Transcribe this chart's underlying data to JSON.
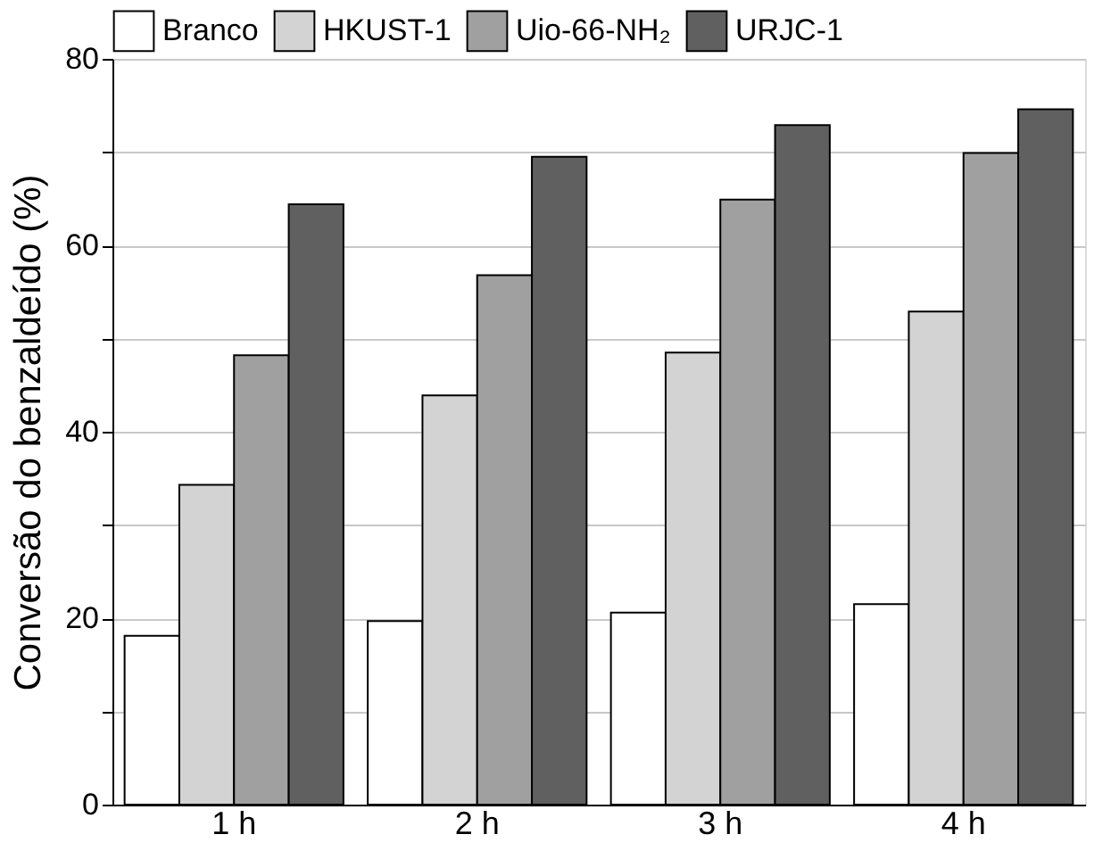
{
  "chart_data": {
    "type": "bar",
    "ylabel": "Conversão do benzaldeído (%)",
    "categories": [
      "1 h",
      "2 h",
      "3 h",
      "4 h"
    ],
    "series": [
      {
        "name": "Branco",
        "color": "#ffffff",
        "values": [
          18.1,
          19.7,
          20.6,
          21.5
        ]
      },
      {
        "name": "HKUST-1",
        "color": "#d3d3d3",
        "values": [
          34.3,
          43.9,
          48.5,
          52.9
        ]
      },
      {
        "name": "Uio-66-NH₂",
        "color": "#a0a0a0",
        "values": [
          48.2,
          56.8,
          64.9,
          69.9
        ]
      },
      {
        "name": "URJC-1",
        "color": "#606060",
        "values": [
          64.4,
          69.5,
          72.9,
          74.6
        ]
      }
    ],
    "ylim": [
      0,
      80
    ],
    "yticks": [
      0,
      {
        "value": 10,
        "label": null
      },
      20,
      {
        "value": 30,
        "label": null
      },
      40,
      {
        "value": 50,
        "label": null
      },
      60,
      {
        "value": 70,
        "label": null
      },
      80
    ],
    "grid": "y",
    "legend": "top"
  }
}
